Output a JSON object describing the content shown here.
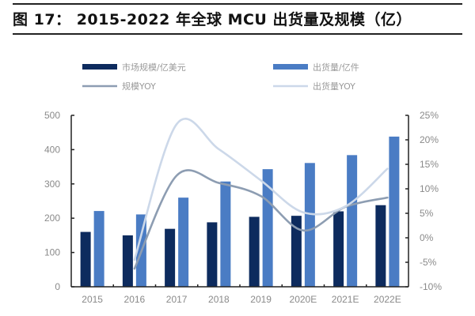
{
  "header": {
    "figure_label": "图 17：",
    "title": "2015-2022 年全球 MCU 出货量及规模（亿）"
  },
  "colors": {
    "market_bar": "#0d2b5e",
    "shipment_bar": "#4a7cc4",
    "market_yoy_line": "#8d9db2",
    "shipment_yoy_line": "#ccd8e9",
    "axis": "#222222",
    "tick_text": "#8a8a8a"
  },
  "chart_data": {
    "type": "bar",
    "title": "2015-2022 年全球 MCU 出货量及规模（亿）",
    "categories": [
      "2015",
      "2016",
      "2017",
      "2018",
      "2019",
      "2020E",
      "2021E",
      "2022E"
    ],
    "series": [
      {
        "name": "市场规模/亿美元",
        "type": "bar",
        "axis": "left",
        "values": [
          160,
          150,
          169,
          188,
          204,
          207,
          220,
          238
        ]
      },
      {
        "name": "出货量/亿件",
        "type": "bar",
        "axis": "left",
        "values": [
          221,
          211,
          260,
          307,
          343,
          361,
          384,
          438
        ]
      },
      {
        "name": "规模YOY",
        "type": "line",
        "axis": "right",
        "unit": "%",
        "values": [
          null,
          -6.3,
          12.7,
          11.2,
          8.5,
          1.5,
          6.3,
          8.2
        ]
      },
      {
        "name": "出货量YOY",
        "type": "line",
        "axis": "right",
        "unit": "%",
        "values": [
          null,
          -4.5,
          23.2,
          18.1,
          11.7,
          5.2,
          6.4,
          14.1
        ]
      }
    ],
    "left_axis": {
      "ylim": [
        0,
        500
      ],
      "ticks": [
        "0",
        "100",
        "200",
        "300",
        "400",
        "500"
      ]
    },
    "right_axis": {
      "ylim": [
        -10,
        25
      ],
      "ticks": [
        "-10%",
        "-5%",
        "0%",
        "5%",
        "10%",
        "15%",
        "20%",
        "25%"
      ]
    },
    "xlabel": "",
    "ylabel": "",
    "grid": false,
    "legend_position": "top"
  },
  "legend": [
    {
      "label": "市场规模/亿美元",
      "kind": "bar"
    },
    {
      "label": "出货量/亿件",
      "kind": "bar"
    },
    {
      "label": "规模YOY",
      "kind": "line"
    },
    {
      "label": "出货量YOY",
      "kind": "line"
    }
  ]
}
